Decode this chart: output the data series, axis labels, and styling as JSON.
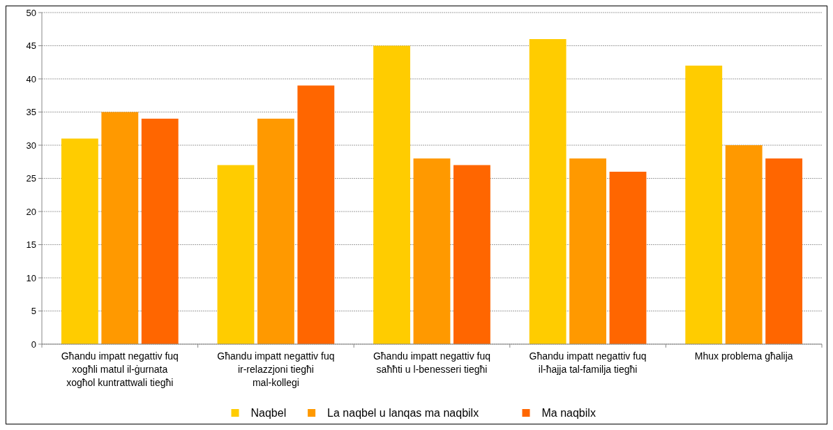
{
  "chart_data": {
    "type": "bar",
    "categories": [
      "Għandu impatt negattiv fuq xogħli matul il-ġurnata xogħol kuntrattwali tiegħi",
      "Għandu impatt negattiv fuq ir-relazzjoni tiegħi mal-kollegi",
      "Għandu impatt negattiv fuq saħħti u l-benesseri tiegħi",
      "Għandu impatt negattiv fuq il-ħajja tal-familja tiegħi",
      "Mhux problema għalija"
    ],
    "series": [
      {
        "name": "Naqbel",
        "color": "#ffcc00",
        "values": [
          31,
          27,
          45,
          46,
          42
        ]
      },
      {
        "name": "La naqbel u lanqas ma naqbilx",
        "color": "#ff9900",
        "values": [
          35,
          34,
          28,
          28,
          30
        ]
      },
      {
        "name": "Ma naqbilx",
        "color": "#ff6600",
        "values": [
          34,
          39,
          27,
          26,
          28
        ]
      }
    ],
    "ylim": [
      0,
      50
    ],
    "yticks": [
      0,
      5,
      10,
      15,
      20,
      25,
      30,
      35,
      40,
      45,
      50
    ],
    "grid": "y",
    "legend": "bottom"
  }
}
